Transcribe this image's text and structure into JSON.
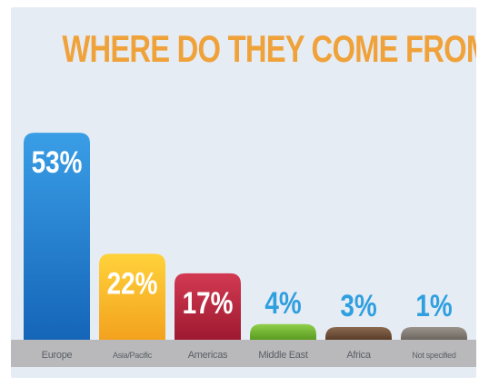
{
  "chart_data": {
    "type": "bar",
    "title": "WHERE DO THEY COME FROM?",
    "categories": [
      "Europe",
      "Asia/Pacific",
      "Americas",
      "Middle East",
      "Africa",
      "Not specified"
    ],
    "values": [
      53,
      22,
      17,
      4,
      3,
      1
    ],
    "value_labels": [
      "53%",
      "22%",
      "17%",
      "4%",
      "3%",
      "1%"
    ],
    "unit": "%",
    "ylim": [
      0,
      60
    ],
    "grid": false,
    "legend": "none",
    "colors": [
      [
        "#3a9ee6",
        "#1565b8"
      ],
      [
        "#ffd23a",
        "#f3a21e"
      ],
      [
        "#d23a52",
        "#9e1930"
      ],
      [
        "#8fcf4a",
        "#5a9a20"
      ],
      [
        "#8a6a50",
        "#5a3c28"
      ],
      [
        "#9a948c",
        "#6c665f"
      ]
    ],
    "label_color_inside": "#ffffff",
    "label_color_above": "#2f9fe0"
  }
}
